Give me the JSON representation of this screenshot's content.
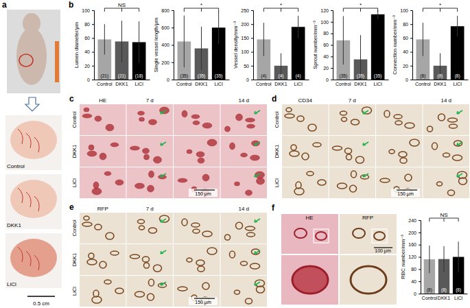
{
  "panel_a": {
    "label": "a",
    "photo_labels": [
      "Control",
      "DKK1",
      "LiCl"
    ],
    "scale_bar": "0.5 cm"
  },
  "panel_b": {
    "label": "b"
  },
  "panel_c": {
    "label": "c",
    "stain": "HE",
    "time_points": [
      "7 d",
      "14 d"
    ],
    "rows": [
      "Control",
      "DKK1",
      "LiCl"
    ],
    "scale_bar": "150 μm"
  },
  "panel_d": {
    "label": "d",
    "stain": "CD34",
    "time_points": [
      "7 d",
      "14 d"
    ],
    "rows": [
      "Control",
      "DKK1",
      "LiCl"
    ],
    "scale_bar": "150 μm"
  },
  "panel_e": {
    "label": "e",
    "stain": "RFP",
    "time_points": [
      "7 d",
      "14 d"
    ],
    "rows": [
      "Control",
      "DKK1",
      "LiCl"
    ],
    "scale_bar": "150 μm"
  },
  "panel_f": {
    "label": "f",
    "images": [
      "HE",
      "RFP"
    ],
    "scale_bar": "100 μm"
  },
  "chart_data": [
    {
      "type": "bar",
      "y_label": "Lumen diameter/μm",
      "categories": [
        "Control",
        "DKK1",
        "LiCl"
      ],
      "values": [
        58,
        55,
        54
      ],
      "errors": [
        22,
        30,
        30
      ],
      "colors": [
        "#a6a6a6",
        "#595959",
        "#000000"
      ],
      "sample_size_labels": [
        "(21)",
        "(21)",
        "(18)"
      ],
      "significance_label": "NS",
      "ylim": [
        0,
        100
      ],
      "yticks": [
        0,
        20,
        40,
        60,
        80,
        100
      ]
    },
    {
      "type": "bar",
      "y_label": "Single vessel length/μm",
      "categories": [
        "Control",
        "DKK1",
        "LiCl"
      ],
      "values": [
        440,
        360,
        600
      ],
      "errors": [
        300,
        250,
        190
      ],
      "colors": [
        "#a6a6a6",
        "#595959",
        "#000000"
      ],
      "sample_size_labels": [
        "(35)",
        "(35)",
        "(35)"
      ],
      "significance_label": "*",
      "ylim": [
        0,
        800
      ],
      "yticks": [
        0,
        200,
        400,
        600,
        800
      ]
    },
    {
      "type": "bar",
      "y_label": "Vessel density/mm⁻³",
      "categories": [
        "Control",
        "DKK1",
        "LiCl"
      ],
      "values": [
        145,
        50,
        190
      ],
      "errors": [
        60,
        45,
        40
      ],
      "colors": [
        "#a6a6a6",
        "#595959",
        "#000000"
      ],
      "sample_size_labels": [
        "(4)",
        "(4)",
        "(4)"
      ],
      "significance_label": "*",
      "ylim": [
        0,
        250
      ],
      "yticks": [
        0,
        50,
        100,
        150,
        200,
        250
      ]
    },
    {
      "type": "bar",
      "y_label": "Sprout number/mm⁻³",
      "categories": [
        "Control",
        "DKK1",
        "LiCl"
      ],
      "values": [
        68,
        35,
        113
      ],
      "errors": [
        42,
        42,
        8
      ],
      "colors": [
        "#a6a6a6",
        "#595959",
        "#000000"
      ],
      "sample_size_labels": [
        "(35)",
        "(35)",
        "(35)"
      ],
      "significance_label": "*",
      "ylim": [
        0,
        120
      ],
      "yticks": [
        0,
        20,
        40,
        60,
        80,
        100,
        120
      ]
    },
    {
      "type": "bar",
      "y_label": "Connection number/mm⁻³",
      "categories": [
        "Control",
        "DKK1",
        "LiCl"
      ],
      "values": [
        58,
        20,
        77
      ],
      "errors": [
        24,
        18,
        15
      ],
      "colors": [
        "#a6a6a6",
        "#595959",
        "#000000"
      ],
      "sample_size_labels": [
        "(8)",
        "(8)",
        "(8)"
      ],
      "significance_label": "*",
      "ylim": [
        0,
        100
      ],
      "yticks": [
        0,
        20,
        40,
        60,
        80,
        100
      ]
    },
    {
      "type": "bar",
      "y_label": "RBC number/mm⁻³",
      "categories": [
        "Control",
        "DKK1",
        "LiCl"
      ],
      "values": [
        112,
        113,
        120
      ],
      "errors": [
        45,
        42,
        50
      ],
      "colors": [
        "#a6a6a6",
        "#595959",
        "#000000"
      ],
      "sample_size_labels": [
        "(8)",
        "(8)",
        "(8)"
      ],
      "significance_label": "NS",
      "ylim": [
        0,
        240
      ],
      "yticks": [
        0,
        40,
        80,
        120,
        160,
        200,
        240
      ]
    }
  ]
}
